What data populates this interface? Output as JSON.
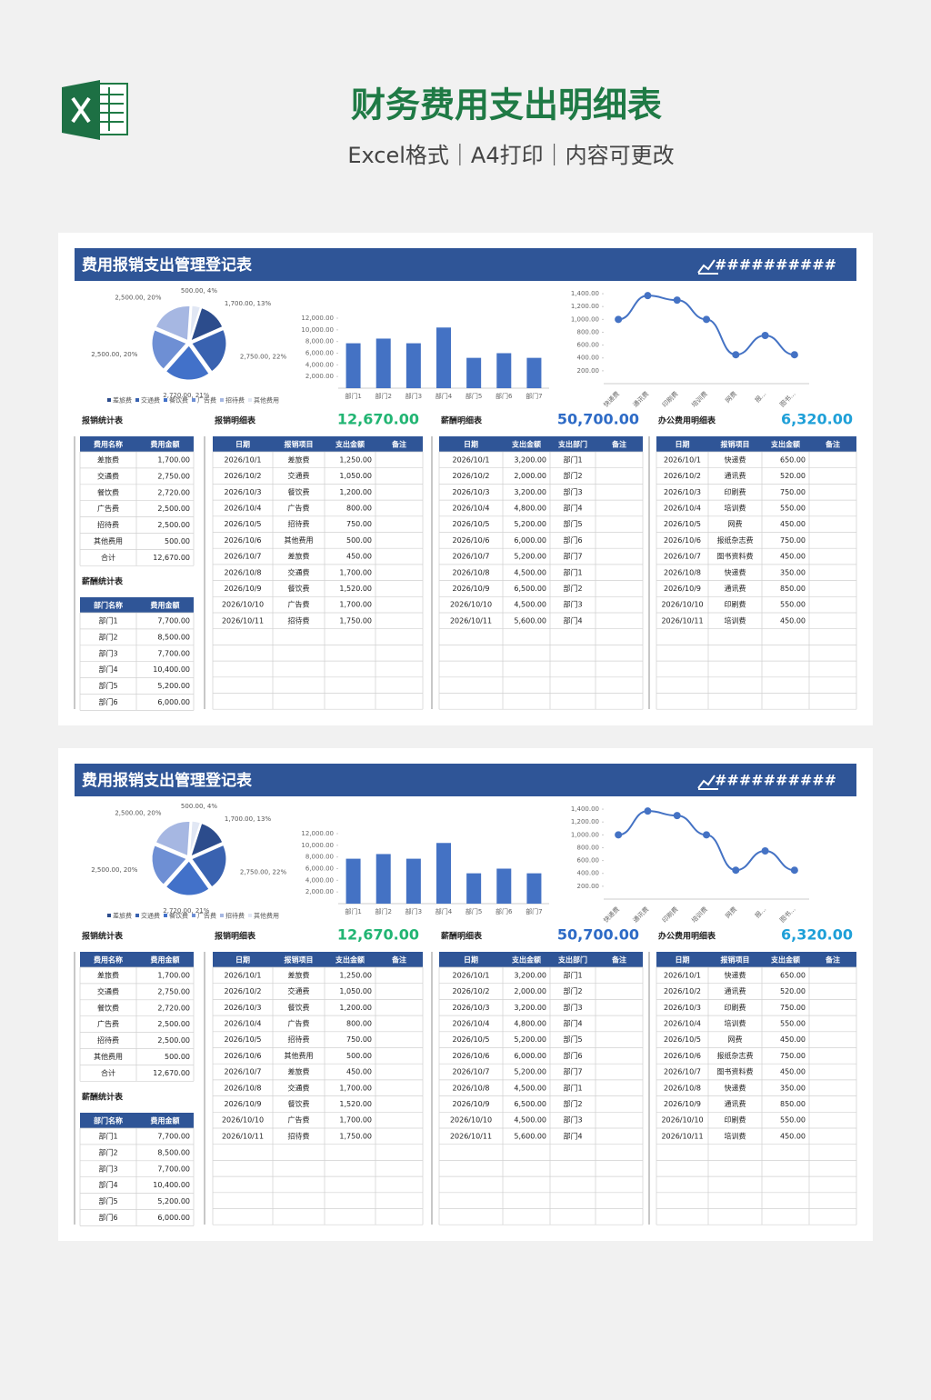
{
  "header": {
    "title": "财务费用支出明细表",
    "subtitle": "Excel格式｜A4打印｜内容可更改"
  },
  "sheet": {
    "title": "费用报销支出管理登记表",
    "date": "##########",
    "pie_chart": {
      "type": "pie",
      "categories": [
        "差旅费",
        "交通费",
        "餐饮费",
        "广告费",
        "招待费",
        "其他费用"
      ],
      "values": [
        1700,
        2750,
        2720,
        2500,
        2500,
        500
      ],
      "value_labels": [
        "1,700.00, 13%",
        "2,750.00, 22%",
        "2,720.00, 21%",
        "2,500.00, 20%",
        "2,500.00, 20%",
        "500.00, 4%"
      ],
      "colors": [
        "#2c4c8c",
        "#3962b0",
        "#4271c9",
        "#6e8fd4",
        "#a6b7e2",
        "#e1e7f4"
      ]
    },
    "bar_chart": {
      "type": "bar",
      "categories": [
        "部门1",
        "部门2",
        "部门3",
        "部门4",
        "部门5",
        "部门6",
        "部门7"
      ],
      "values": [
        7700,
        8500,
        7700,
        10400,
        5200,
        6000,
        5200
      ],
      "color": "#4472c4",
      "ylim": [
        0,
        12000
      ],
      "yticks": [
        {
          "value": 2000,
          "label": "2,000.00"
        },
        {
          "value": 4000,
          "label": "4,000.00"
        },
        {
          "value": 6000,
          "label": "6,000.00"
        },
        {
          "value": 8000,
          "label": "8,000.00"
        },
        {
          "value": 10000,
          "label": "10,000.00"
        },
        {
          "value": 12000,
          "label": "12,000.00"
        }
      ]
    },
    "line_chart": {
      "type": "line",
      "categories": [
        "快递费",
        "通讯费",
        "印刷费",
        "培训费",
        "网费",
        "报...",
        "图书..."
      ],
      "values": [
        1000,
        1370,
        1300,
        1000,
        450,
        750,
        450
      ],
      "color": "#4472c4",
      "ylim": [
        0,
        1500
      ],
      "yticks": [
        {
          "value": 200,
          "label": "200.00"
        },
        {
          "value": 400,
          "label": "400.00"
        },
        {
          "value": 600,
          "label": "600.00"
        },
        {
          "value": 800,
          "label": "800.00"
        },
        {
          "value": 1000,
          "label": "1,000.00"
        },
        {
          "value": 1200,
          "label": "1,200.00"
        },
        {
          "value": 1400,
          "label": "1,400.00"
        }
      ]
    },
    "expense_summary": {
      "title": "报销统计表",
      "columns": [
        "费用名称",
        "费用金额"
      ],
      "rows": [
        [
          "差旅费",
          "1,700.00"
        ],
        [
          "交通费",
          "2,750.00"
        ],
        [
          "餐饮费",
          "2,720.00"
        ],
        [
          "广告费",
          "2,500.00"
        ],
        [
          "招待费",
          "2,500.00"
        ],
        [
          "其他费用",
          "500.00"
        ],
        [
          "合计",
          "12,670.00"
        ]
      ]
    },
    "salary_summary": {
      "title": "薪酬统计表",
      "columns": [
        "部门名称",
        "费用金额"
      ],
      "rows": [
        [
          "部门1",
          "7,700.00"
        ],
        [
          "部门2",
          "8,500.00"
        ],
        [
          "部门3",
          "7,700.00"
        ],
        [
          "部门4",
          "10,400.00"
        ],
        [
          "部门5",
          "5,200.00"
        ],
        [
          "部门6",
          "6,000.00"
        ]
      ]
    },
    "expense_detail": {
      "title": "报销明细表",
      "total": "12,670.00",
      "columns": [
        "日期",
        "报销项目",
        "支出金额",
        "备注"
      ],
      "rows": [
        [
          "2026/10/1",
          "差旅费",
          "1,250.00"
        ],
        [
          "2026/10/2",
          "交通费",
          "1,050.00"
        ],
        [
          "2026/10/3",
          "餐饮费",
          "1,200.00"
        ],
        [
          "2026/10/4",
          "广告费",
          "800.00"
        ],
        [
          "2026/10/5",
          "招待费",
          "750.00"
        ],
        [
          "2026/10/6",
          "其他费用",
          "500.00"
        ],
        [
          "2026/10/7",
          "差旅费",
          "450.00"
        ],
        [
          "2026/10/8",
          "交通费",
          "1,700.00"
        ],
        [
          "2026/10/9",
          "餐饮费",
          "1,520.00"
        ],
        [
          "2026/10/10",
          "广告费",
          "1,700.00"
        ],
        [
          "2026/10/11",
          "招待费",
          "1,750.00"
        ]
      ]
    },
    "salary_detail": {
      "title": "薪酬明细表",
      "total": "50,700.00",
      "columns": [
        "日期",
        "支出金额",
        "支出部门",
        "备注"
      ],
      "rows": [
        [
          "2026/10/1",
          "3,200.00",
          "部门1"
        ],
        [
          "2026/10/2",
          "2,000.00",
          "部门2"
        ],
        [
          "2026/10/3",
          "3,200.00",
          "部门3"
        ],
        [
          "2026/10/4",
          "4,800.00",
          "部门4"
        ],
        [
          "2026/10/5",
          "5,200.00",
          "部门5"
        ],
        [
          "2026/10/6",
          "6,000.00",
          "部门6"
        ],
        [
          "2026/10/7",
          "5,200.00",
          "部门7"
        ],
        [
          "2026/10/8",
          "4,500.00",
          "部门1"
        ],
        [
          "2026/10/9",
          "6,500.00",
          "部门2"
        ],
        [
          "2026/10/10",
          "4,500.00",
          "部门3"
        ],
        [
          "2026/10/11",
          "5,600.00",
          "部门4"
        ]
      ]
    },
    "office_detail": {
      "title": "办公费用明细表",
      "total": "6,320.00",
      "columns": [
        "日期",
        "报销项目",
        "支出金额",
        "备注"
      ],
      "rows": [
        [
          "2026/10/1",
          "快递费",
          "650.00"
        ],
        [
          "2026/10/2",
          "通讯费",
          "520.00"
        ],
        [
          "2026/10/3",
          "印刷费",
          "750.00"
        ],
        [
          "2026/10/4",
          "培训费",
          "550.00"
        ],
        [
          "2026/10/5",
          "网费",
          "450.00"
        ],
        [
          "2026/10/6",
          "报纸杂志费",
          "750.00"
        ],
        [
          "2026/10/7",
          "图书资料费",
          "450.00"
        ],
        [
          "2026/10/8",
          "快递费",
          "350.00"
        ],
        [
          "2026/10/9",
          "通讯费",
          "850.00"
        ],
        [
          "2026/10/10",
          "印刷费",
          "550.00"
        ],
        [
          "2026/10/11",
          "培训费",
          "450.00"
        ]
      ]
    }
  }
}
